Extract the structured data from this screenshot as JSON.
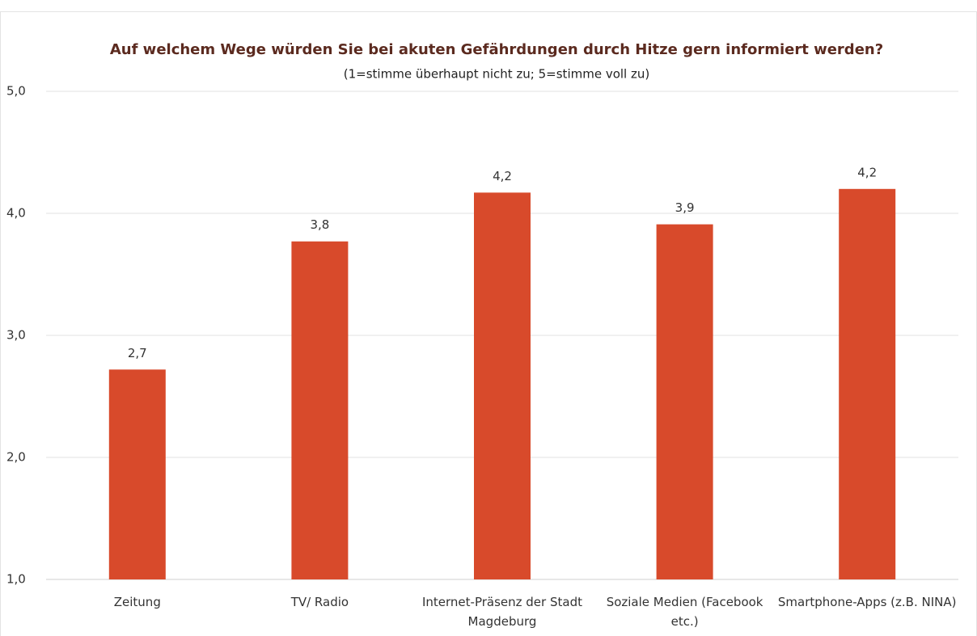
{
  "chart_data": {
    "type": "bar",
    "title": "Auf welchem Wege würden Sie bei akuten Gefährdungen durch Hitze gern informiert werden?",
    "subtitle": "(1=stimme überhaupt nicht zu; 5=stimme voll zu)",
    "categories": [
      "Zeitung",
      "TV/ Radio",
      "Internet-Präsenz der Stadt Magdeburg",
      "Soziale Medien (Facebook etc.)",
      "Smartphone-Apps (z.B. NINA)"
    ],
    "values": [
      2.72,
      3.77,
      4.17,
      3.91,
      4.2
    ],
    "value_labels": [
      "2,7",
      "3,8",
      "4,2",
      "3,9",
      "4,2"
    ],
    "color": "#d84a2b",
    "ylim": [
      1,
      5
    ],
    "yticks": [
      {
        "value": 1,
        "label": "1,0"
      },
      {
        "value": 2,
        "label": "2,0"
      },
      {
        "value": 3,
        "label": "3,0"
      },
      {
        "value": 4,
        "label": "4,0"
      },
      {
        "value": 5,
        "label": "5,0"
      }
    ],
    "grid": true
  }
}
